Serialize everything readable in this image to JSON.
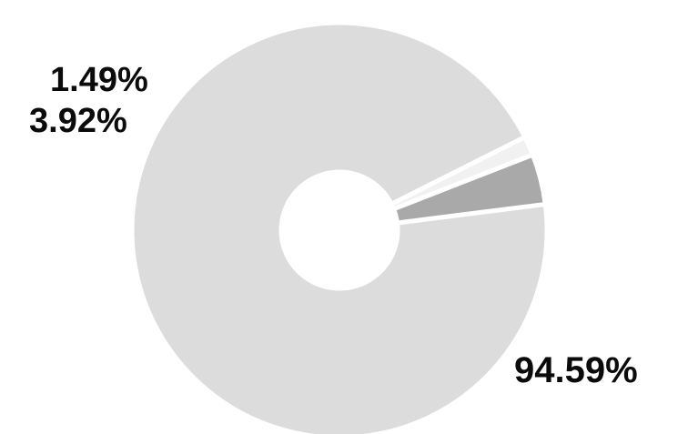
{
  "chart_data": {
    "type": "pie",
    "donut": true,
    "slices": [
      {
        "label": "94.59%",
        "value": 94.59,
        "color": "#dcdcdc"
      },
      {
        "label": "1.49%",
        "value": 1.49,
        "color": "#f1f1f1"
      },
      {
        "label": "3.92%",
        "value": 3.92,
        "color": "#a9a9a9"
      }
    ],
    "separator_color": "#ffffff",
    "title": "",
    "legend": "none"
  }
}
